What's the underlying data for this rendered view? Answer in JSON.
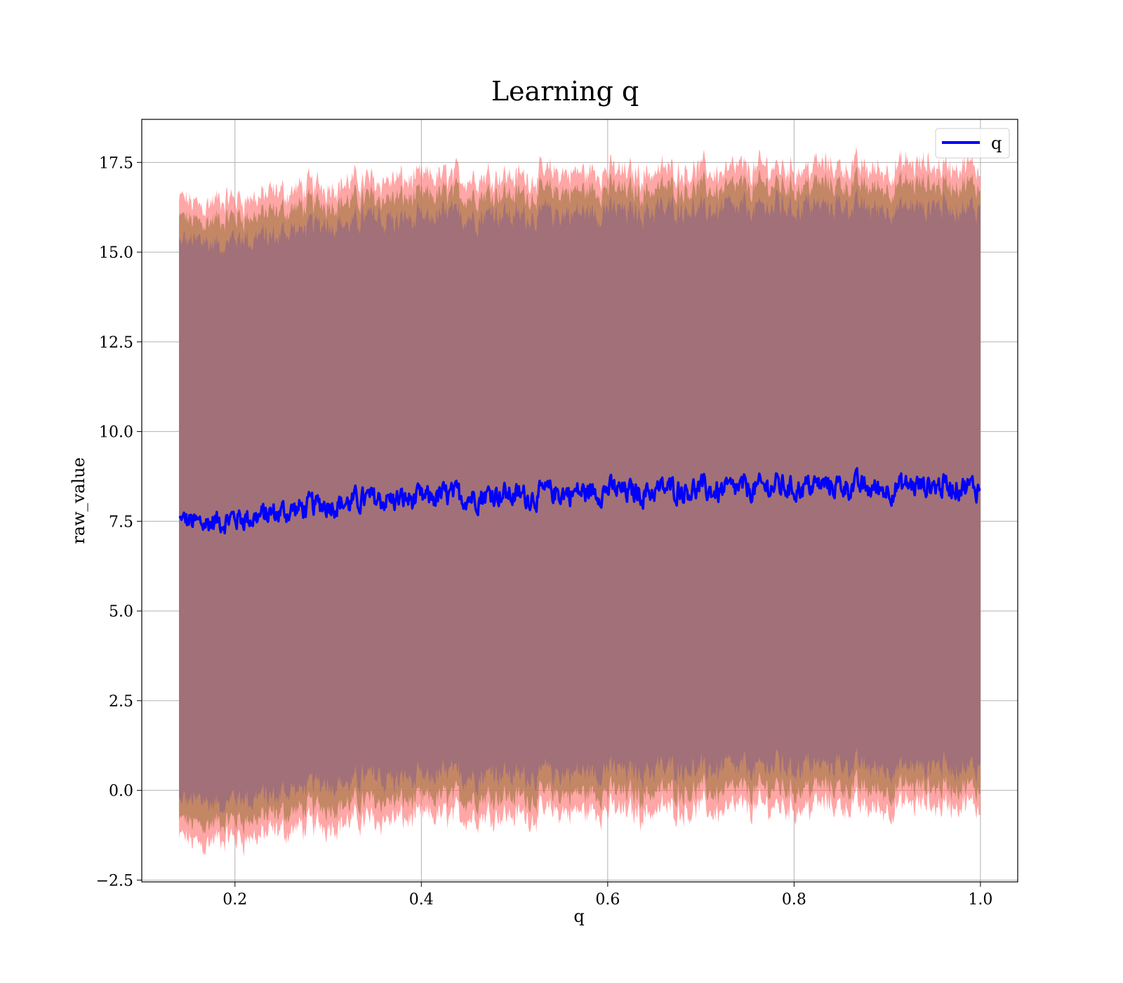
{
  "chart_data": {
    "type": "line",
    "title": "Learning q",
    "xlabel": "q",
    "ylabel": "raw_value",
    "xlim": [
      0.1,
      1.04
    ],
    "ylim": [
      -2.55,
      18.7
    ],
    "xticks": [
      0.2,
      0.4,
      0.6,
      0.8,
      1.0
    ],
    "xtick_labels": [
      "0.2",
      "0.4",
      "0.6",
      "0.8",
      "1.0"
    ],
    "yticks": [
      -2.5,
      0.0,
      2.5,
      5.0,
      7.5,
      10.0,
      12.5,
      15.0,
      17.5
    ],
    "ytick_labels": [
      "−2.5",
      "0.0",
      "2.5",
      "5.0",
      "7.5",
      "10.0",
      "12.5",
      "15.0",
      "17.5"
    ],
    "grid": true,
    "legend_position": "top-right",
    "colors": {
      "line": "#0000ff",
      "outer_band": "#ff6b6b",
      "mid_band": "#b8815a",
      "inner_band": "#a27078"
    },
    "series": [
      {
        "name": "q",
        "x": [
          0.14,
          0.16,
          0.18,
          0.2,
          0.22,
          0.24,
          0.26,
          0.28,
          0.3,
          0.32,
          0.34,
          0.36,
          0.38,
          0.4,
          0.42,
          0.44,
          0.46,
          0.48,
          0.5,
          0.52,
          0.54,
          0.56,
          0.58,
          0.6,
          0.62,
          0.64,
          0.66,
          0.68,
          0.7,
          0.72,
          0.74,
          0.76,
          0.78,
          0.8,
          0.82,
          0.84,
          0.86,
          0.88,
          0.9,
          0.92,
          0.94,
          0.96,
          0.98,
          1.0
        ],
        "values": [
          7.6,
          7.4,
          7.5,
          7.6,
          7.6,
          7.7,
          7.8,
          7.9,
          8.0,
          8.0,
          8.1,
          8.1,
          8.1,
          8.1,
          8.2,
          8.2,
          8.2,
          8.3,
          8.2,
          8.2,
          8.3,
          8.3,
          8.3,
          8.4,
          8.3,
          8.3,
          8.4,
          8.4,
          8.4,
          8.3,
          8.4,
          8.4,
          8.5,
          8.4,
          8.5,
          8.5,
          8.5,
          8.4,
          8.4,
          8.5,
          8.5,
          8.5,
          8.5,
          8.4
        ]
      }
    ]
  }
}
